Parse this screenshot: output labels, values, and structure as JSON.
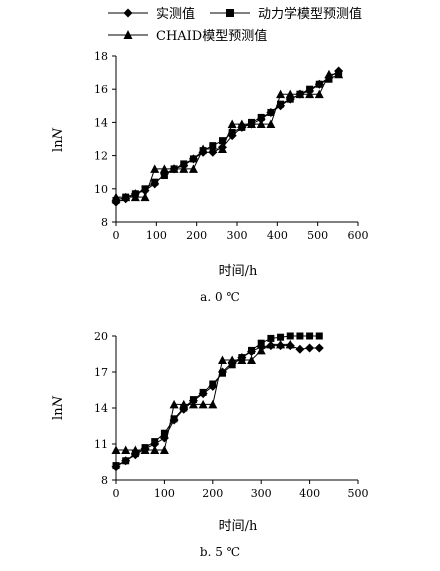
{
  "chart_data": [
    {
      "type": "line",
      "caption": "a. 0 ℃",
      "xlabel": "时间/h",
      "ylabel_main": "ln",
      "ylabel_italic": "N",
      "xlim": [
        0,
        600
      ],
      "ylim": [
        8,
        18
      ],
      "xticks": [
        0,
        100,
        200,
        300,
        400,
        500,
        600
      ],
      "yticks": [
        8,
        10,
        12,
        14,
        16,
        18
      ],
      "grid": false,
      "legend_position": "top",
      "series": [
        {
          "name": "实测值",
          "marker": "diamond",
          "x": [
            0,
            24,
            48,
            72,
            96,
            120,
            144,
            168,
            192,
            216,
            240,
            264,
            288,
            312,
            336,
            360,
            384,
            408,
            432,
            456,
            480,
            504,
            528,
            552
          ],
          "y": [
            9.2,
            9.4,
            9.7,
            9.9,
            10.3,
            10.9,
            11.2,
            11.4,
            11.8,
            12.2,
            12.2,
            12.5,
            13.2,
            13.7,
            13.9,
            14.2,
            14.6,
            15.0,
            15.4,
            15.7,
            15.9,
            16.3,
            16.7,
            17.1
          ]
        },
        {
          "name": "动力学模型预测值",
          "marker": "square",
          "x": [
            0,
            24,
            48,
            72,
            96,
            120,
            144,
            168,
            192,
            216,
            240,
            264,
            288,
            312,
            336,
            360,
            384,
            408,
            432,
            456,
            480,
            504,
            528,
            552
          ],
          "y": [
            9.3,
            9.5,
            9.7,
            10.0,
            10.4,
            10.8,
            11.2,
            11.5,
            11.8,
            12.3,
            12.6,
            12.9,
            13.4,
            13.7,
            14.0,
            14.3,
            14.6,
            15.1,
            15.4,
            15.7,
            16.0,
            16.3,
            16.6,
            16.9
          ]
        },
        {
          "name": "CHAID模型预测值",
          "marker": "triangle",
          "x": [
            0,
            24,
            48,
            72,
            96,
            120,
            144,
            168,
            192,
            216,
            240,
            264,
            288,
            312,
            336,
            360,
            384,
            408,
            432,
            456,
            480,
            504,
            528,
            552
          ],
          "y": [
            9.5,
            9.5,
            9.5,
            9.5,
            11.2,
            11.2,
            11.2,
            11.2,
            11.2,
            12.4,
            12.4,
            12.4,
            13.9,
            13.9,
            13.9,
            13.9,
            13.9,
            15.7,
            15.7,
            15.7,
            15.7,
            15.7,
            16.9,
            16.9
          ]
        }
      ]
    },
    {
      "type": "line",
      "caption": "b. 5 ℃",
      "xlabel": "时间/h",
      "ylabel_main": "ln",
      "ylabel_italic": "N",
      "xlim": [
        0,
        500
      ],
      "ylim": [
        8,
        20
      ],
      "xticks": [
        0,
        100,
        200,
        300,
        400,
        500
      ],
      "yticks": [
        8,
        11,
        14,
        17,
        20
      ],
      "grid": false,
      "series": [
        {
          "name": "实测值",
          "marker": "diamond",
          "x": [
            0,
            20,
            40,
            60,
            80,
            100,
            120,
            140,
            160,
            180,
            200,
            220,
            240,
            260,
            280,
            300,
            320,
            340,
            360,
            380,
            400,
            420
          ],
          "y": [
            9.1,
            9.6,
            10.1,
            10.6,
            11.0,
            11.5,
            13.0,
            13.9,
            14.6,
            15.2,
            15.8,
            17.0,
            17.8,
            18.2,
            18.7,
            19.1,
            19.2,
            19.2,
            19.2,
            18.9,
            19.0,
            19.0
          ]
        },
        {
          "name": "动力学模型预测值",
          "marker": "square",
          "x": [
            0,
            20,
            40,
            60,
            80,
            100,
            120,
            140,
            160,
            180,
            200,
            220,
            240,
            260,
            280,
            300,
            320,
            340,
            360,
            380,
            400,
            420
          ],
          "y": [
            9.2,
            9.6,
            10.2,
            10.7,
            11.2,
            11.9,
            13.1,
            14.0,
            14.7,
            15.3,
            16.0,
            16.9,
            17.6,
            18.2,
            18.8,
            19.4,
            19.8,
            19.9,
            20.0,
            20.0,
            20.0,
            20.0
          ]
        },
        {
          "name": "CHAID模型预测值",
          "marker": "triangle",
          "x": [
            0,
            20,
            40,
            60,
            80,
            100,
            120,
            140,
            160,
            180,
            200,
            220,
            240,
            260,
            280,
            300,
            320,
            340,
            360
          ],
          "y": [
            10.5,
            10.5,
            10.5,
            10.5,
            10.5,
            10.5,
            14.3,
            14.3,
            14.3,
            14.3,
            14.3,
            18.0,
            18.0,
            18.0,
            18.0,
            18.8,
            19.3,
            19.3,
            19.3
          ]
        }
      ]
    }
  ]
}
